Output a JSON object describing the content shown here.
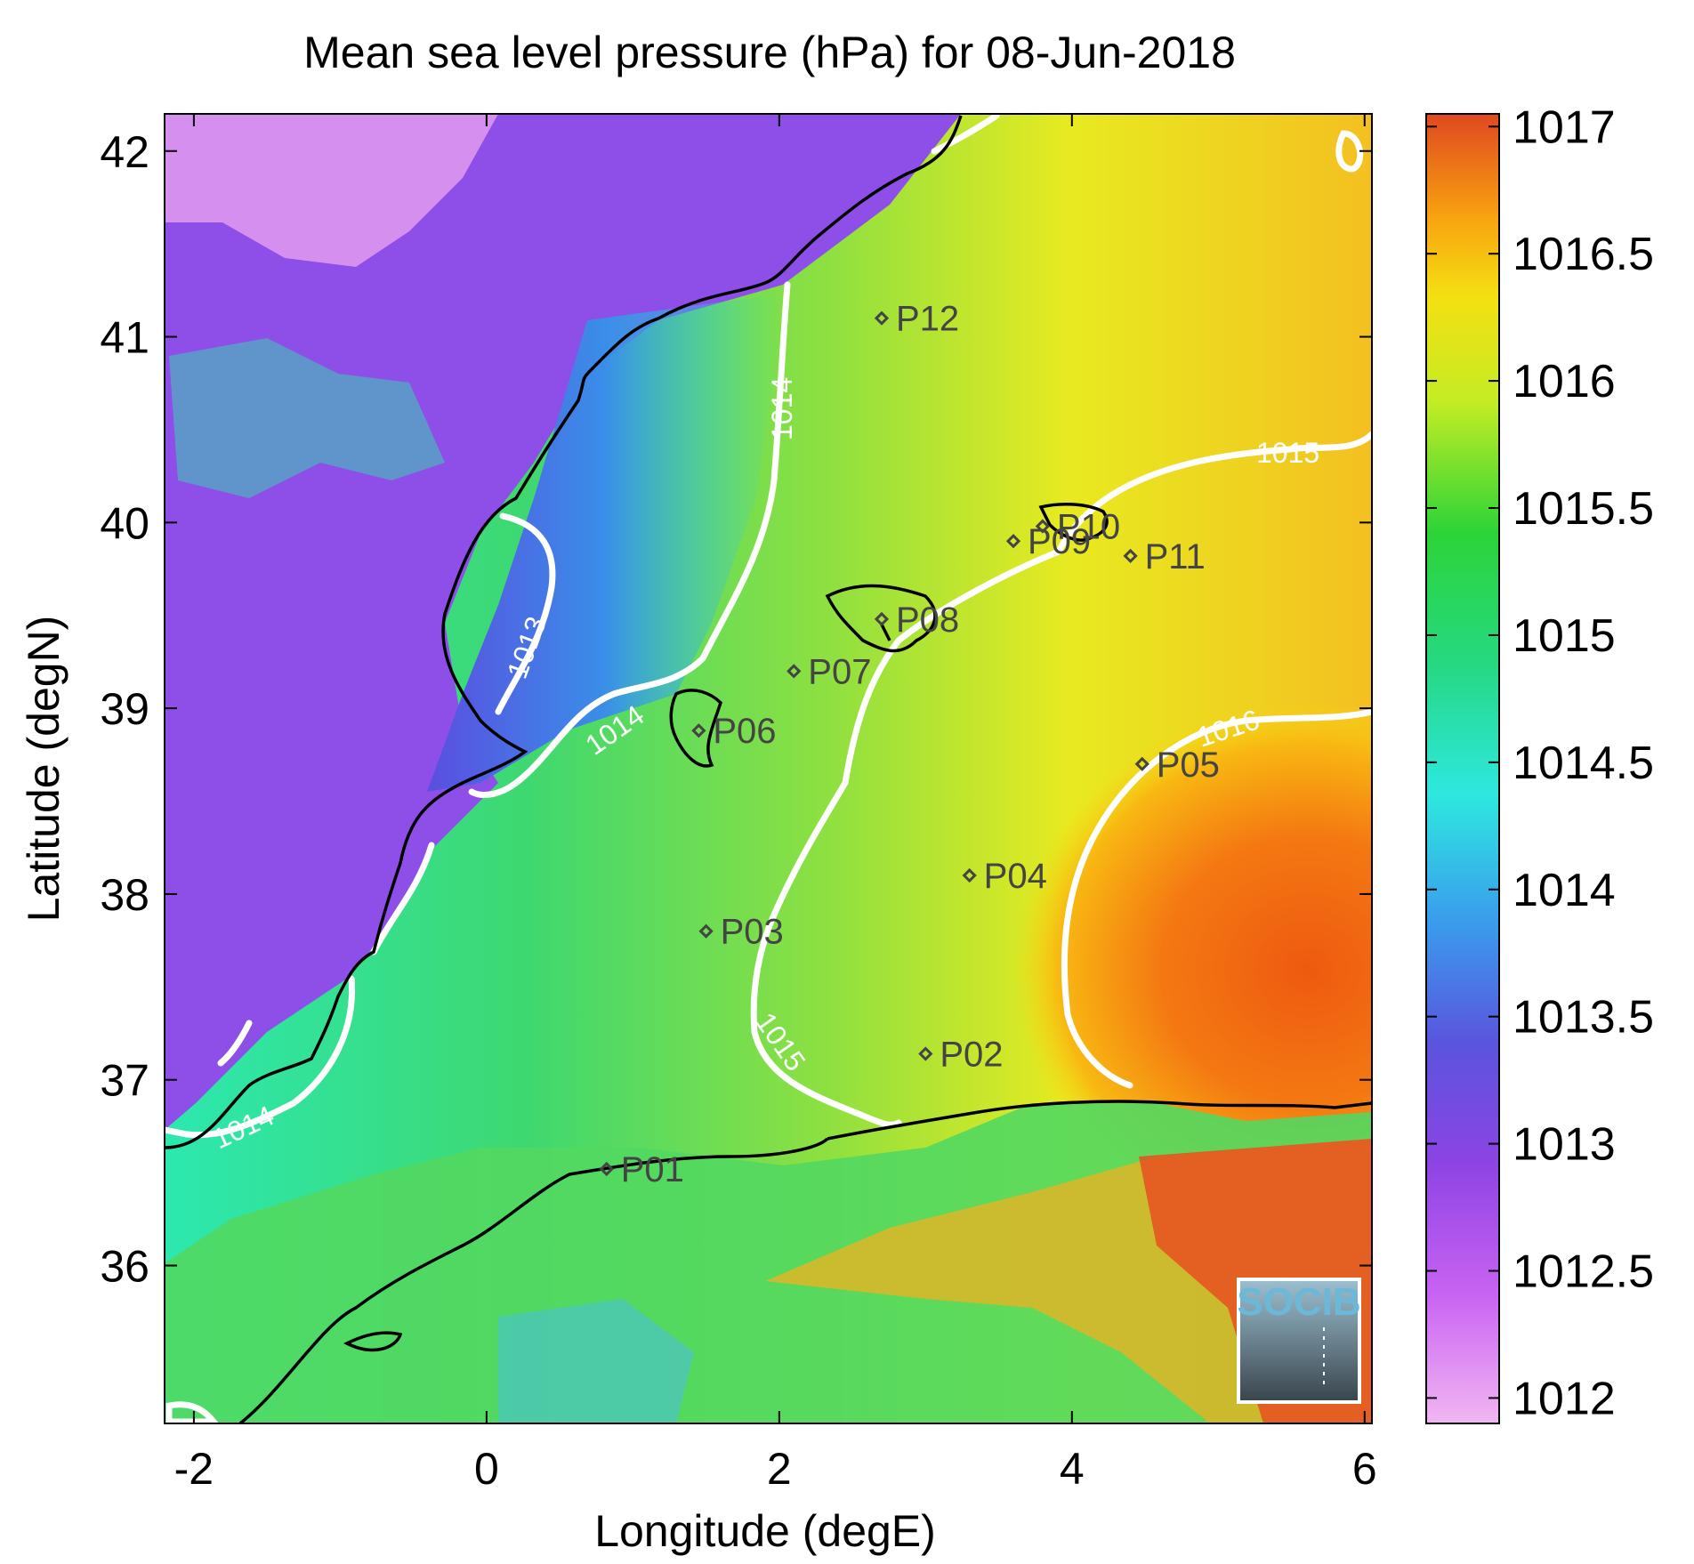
{
  "title": "Mean sea level pressure (hPa) for 08-Jun-2018",
  "x_axis": {
    "label": "Longitude (degE)",
    "ticks": [
      "-2",
      "0",
      "2",
      "4",
      "6"
    ],
    "tick_values": [
      -2,
      0,
      2,
      4,
      6
    ],
    "range": [
      -2.2,
      6.05
    ]
  },
  "y_axis": {
    "label": "Latitude (degN)",
    "ticks": [
      "36",
      "37",
      "38",
      "39",
      "40",
      "41",
      "42"
    ],
    "tick_values": [
      36,
      37,
      38,
      39,
      40,
      41,
      42
    ],
    "range": [
      35.15,
      42.2
    ]
  },
  "colorbar": {
    "range": [
      1011.9,
      1017.05
    ],
    "ticks": [
      "1012",
      "1012.5",
      "1013",
      "1013.5",
      "1014",
      "1014.5",
      "1015",
      "1015.5",
      "1016",
      "1016.5",
      "1017"
    ],
    "tick_values": [
      1012,
      1012.5,
      1013,
      1013.5,
      1014,
      1014.5,
      1015,
      1015.5,
      1016,
      1016.5,
      1017
    ],
    "colormap": [
      "#f2b6f2",
      "#c060f0",
      "#7a4ae0",
      "#3f8ce8",
      "#2ee8e0",
      "#28d860",
      "#2cd440",
      "#c8ec20",
      "#f2e410",
      "#f8a010",
      "#f26010",
      "#e04a20"
    ]
  },
  "stations": [
    {
      "name": "P01",
      "lon": 0.82,
      "lat": 36.52
    },
    {
      "name": "P02",
      "lon": 3.0,
      "lat": 37.14
    },
    {
      "name": "P03",
      "lon": 1.5,
      "lat": 37.8
    },
    {
      "name": "P04",
      "lon": 3.3,
      "lat": 38.1
    },
    {
      "name": "P05",
      "lon": 4.48,
      "lat": 38.7
    },
    {
      "name": "P06",
      "lon": 1.45,
      "lat": 38.88
    },
    {
      "name": "P07",
      "lon": 2.1,
      "lat": 39.2
    },
    {
      "name": "P08",
      "lon": 2.7,
      "lat": 39.48
    },
    {
      "name": "P09",
      "lon": 3.6,
      "lat": 39.9
    },
    {
      "name": "P10",
      "lon": 3.8,
      "lat": 39.98
    },
    {
      "name": "P11",
      "lon": 4.4,
      "lat": 39.82
    },
    {
      "name": "P12",
      "lon": 2.7,
      "lat": 41.1
    }
  ],
  "contour_labels": [
    "1013",
    "1014",
    "1014",
    "1014",
    "1015",
    "1015",
    "1016"
  ],
  "logo": "SOCIB",
  "colors": {
    "contour": "#ffffff",
    "coastline": "#000000",
    "station_marker": "#444444"
  }
}
